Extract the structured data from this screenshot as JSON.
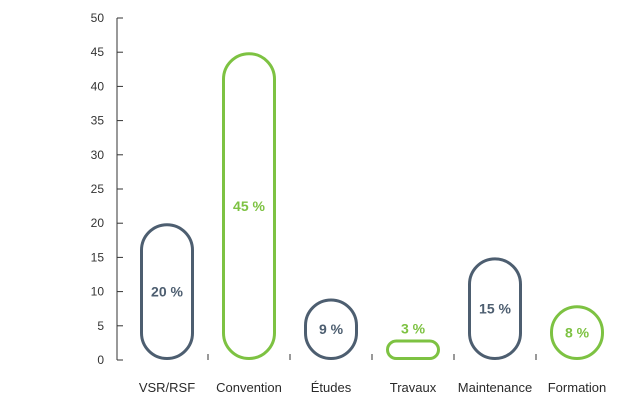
{
  "chart_data": {
    "type": "bar",
    "categories": [
      "VSR/RSF",
      "Convention",
      "Études",
      "Travaux",
      "Maintenance",
      "Formation"
    ],
    "values": [
      20,
      45,
      9,
      3,
      15,
      8
    ],
    "value_labels": [
      "20 %",
      "45 %",
      "9 %",
      "3 %",
      "15 %",
      "8 %"
    ],
    "bar_colors": [
      "#4d5e70",
      "#7dc242",
      "#4d5e70",
      "#7dc242",
      "#4d5e70",
      "#7dc242"
    ],
    "y_ticks": [
      "0",
      "5",
      "10",
      "15",
      "20",
      "25",
      "30",
      "35",
      "40",
      "45",
      "50"
    ],
    "ylim": [
      0,
      50
    ],
    "title": "",
    "xlabel": "",
    "ylabel": "",
    "grid": false,
    "legend": "none"
  },
  "colors": {
    "axis": "#333333",
    "dark": "#4d5e70",
    "green": "#7dc242"
  }
}
